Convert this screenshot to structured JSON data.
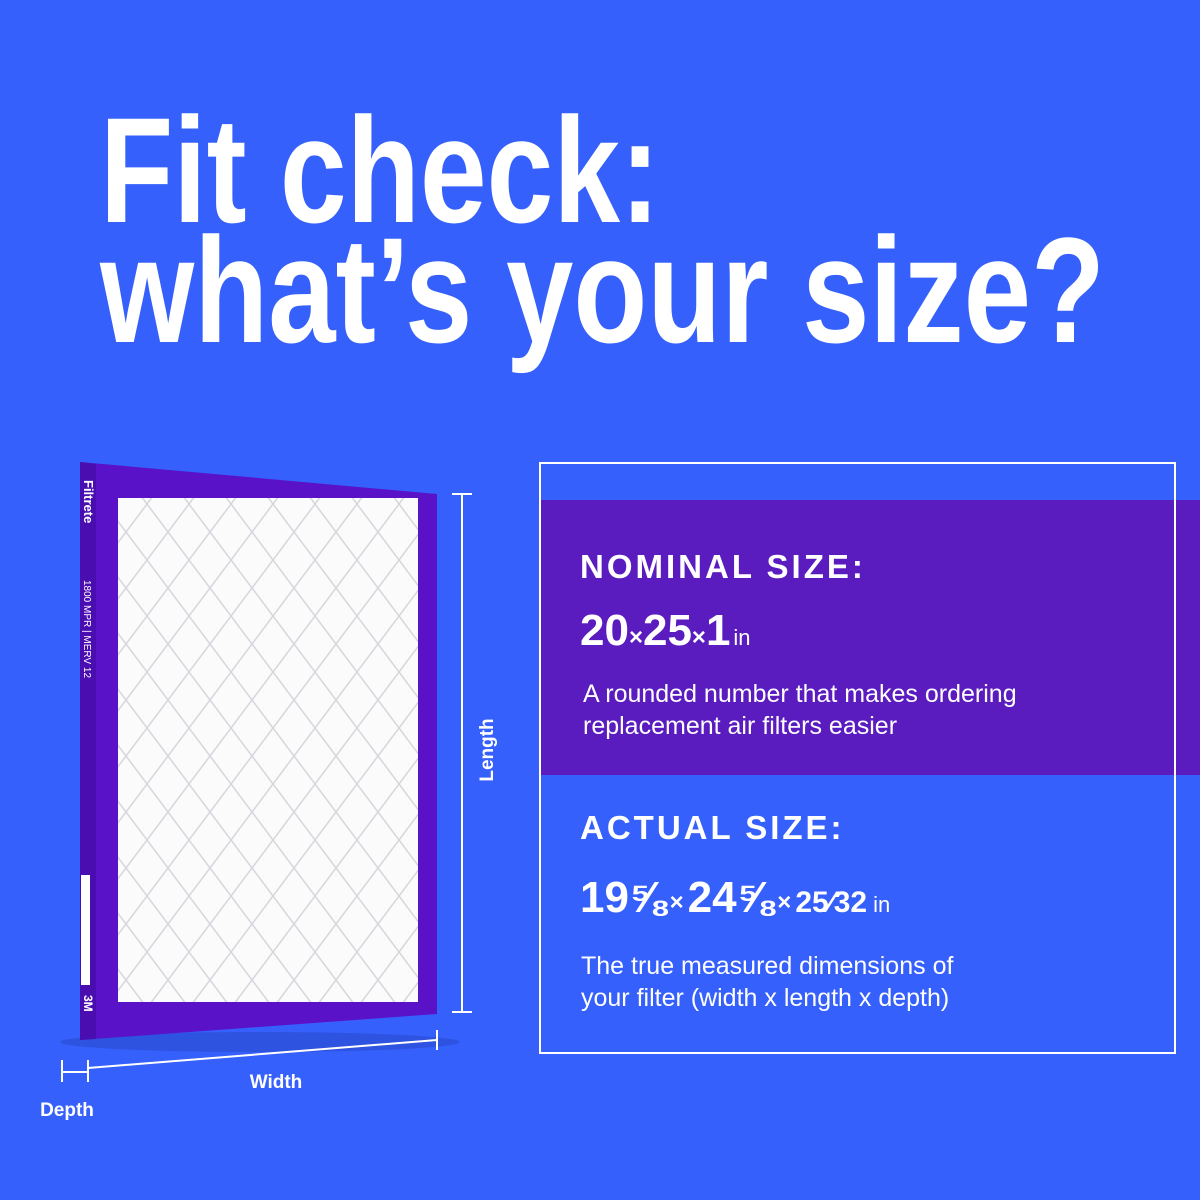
{
  "header": {
    "title_lines": [
      "Fit check:",
      "what’s your size?"
    ]
  },
  "filter": {
    "brand": "Filtrete",
    "rating": "1800 MPR | MERV 12",
    "maker": "3M",
    "dimensions": {
      "length": "Length",
      "width": "Width",
      "depth": "Depth"
    }
  },
  "nominal": {
    "heading": "NOMINAL SIZE:",
    "size": [
      "20",
      "×",
      "25",
      "×",
      "1",
      "in"
    ],
    "description_lines": [
      "A rounded number that makes ordering",
      "replacement air filters easier"
    ]
  },
  "actual": {
    "heading": "ACTUAL SIZE:",
    "size": [
      "19⅝",
      "×",
      "24⅝",
      "×",
      "25⁄32",
      "in"
    ],
    "description_lines": [
      "The true measured dimensions of",
      "your filter (width x length x depth)"
    ]
  }
}
